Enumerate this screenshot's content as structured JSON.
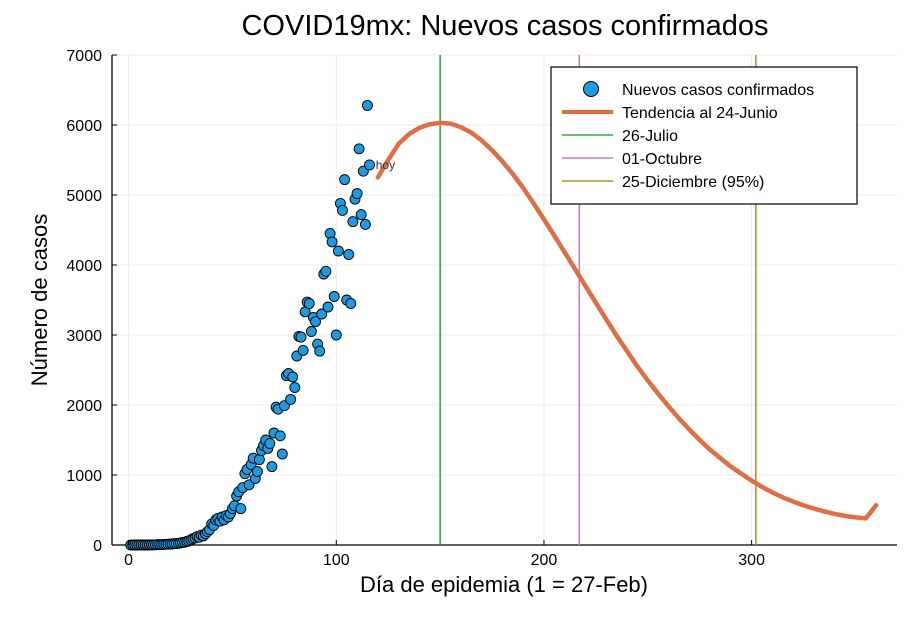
{
  "chart_data": {
    "type": "scatter",
    "title": "COVID19mx: Nuevos casos confirmados",
    "xlabel": "Día de epidemia (1 = 27-Feb)",
    "ylabel": "Número de casos",
    "xlim": [
      -8,
      370
    ],
    "ylim": [
      0,
      7000
    ],
    "xticks": [
      0,
      100,
      200,
      300
    ],
    "yticks": [
      0,
      1000,
      2000,
      3000,
      4000,
      5000,
      6000,
      7000
    ],
    "grid": true,
    "legend_position": "top-right",
    "annotation": {
      "text": "hoy",
      "x": 119,
      "y": 5430
    },
    "colors": {
      "scatter": "#1e9ae0",
      "trend": "#e06d43",
      "julio": "#3aa54a",
      "octubre": "#c47ccc",
      "diciembre": "#a89a1c"
    },
    "series": [
      {
        "name": "Nuevos casos confirmados",
        "type": "scatter",
        "points": [
          [
            1,
            0
          ],
          [
            2,
            0
          ],
          [
            3,
            0
          ],
          [
            4,
            0
          ],
          [
            5,
            1
          ],
          [
            6,
            1
          ],
          [
            7,
            0
          ],
          [
            8,
            2
          ],
          [
            9,
            0
          ],
          [
            10,
            1
          ],
          [
            11,
            2
          ],
          [
            12,
            1
          ],
          [
            13,
            3
          ],
          [
            14,
            5
          ],
          [
            15,
            4
          ],
          [
            16,
            5
          ],
          [
            17,
            8
          ],
          [
            18,
            10
          ],
          [
            19,
            12
          ],
          [
            20,
            13
          ],
          [
            21,
            15
          ],
          [
            22,
            18
          ],
          [
            23,
            20
          ],
          [
            24,
            25
          ],
          [
            25,
            30
          ],
          [
            26,
            35
          ],
          [
            27,
            40
          ],
          [
            28,
            50
          ],
          [
            29,
            60
          ],
          [
            30,
            75
          ],
          [
            31,
            90
          ],
          [
            32,
            100
          ],
          [
            33,
            120
          ],
          [
            34,
            110
          ],
          [
            35,
            140
          ],
          [
            36,
            130
          ],
          [
            37,
            160
          ],
          [
            38,
            190
          ],
          [
            39,
            220
          ],
          [
            40,
            300
          ],
          [
            41,
            280
          ],
          [
            42,
            360
          ],
          [
            43,
            380
          ],
          [
            44,
            340
          ],
          [
            45,
            400
          ],
          [
            46,
            360
          ],
          [
            47,
            420
          ],
          [
            48,
            400
          ],
          [
            49,
            450
          ],
          [
            50,
            520
          ],
          [
            51,
            560
          ],
          [
            52,
            700
          ],
          [
            53,
            760
          ],
          [
            54,
            520
          ],
          [
            55,
            820
          ],
          [
            56,
            1020
          ],
          [
            57,
            1080
          ],
          [
            58,
            860
          ],
          [
            59,
            1150
          ],
          [
            60,
            1240
          ],
          [
            61,
            950
          ],
          [
            62,
            1050
          ],
          [
            63,
            1220
          ],
          [
            64,
            1350
          ],
          [
            65,
            1420
          ],
          [
            66,
            1500
          ],
          [
            67,
            1380
          ],
          [
            68,
            1450
          ],
          [
            69,
            1120
          ],
          [
            70,
            1600
          ],
          [
            71,
            1970
          ],
          [
            72,
            1940
          ],
          [
            73,
            1560
          ],
          [
            74,
            1300
          ],
          [
            75,
            1990
          ],
          [
            76,
            2420
          ],
          [
            77,
            2450
          ],
          [
            78,
            2080
          ],
          [
            79,
            2400
          ],
          [
            80,
            2250
          ],
          [
            81,
            2700
          ],
          [
            82,
            2980
          ],
          [
            83,
            2970
          ],
          [
            84,
            2780
          ],
          [
            85,
            3330
          ],
          [
            86,
            3470
          ],
          [
            87,
            3450
          ],
          [
            88,
            3050
          ],
          [
            89,
            3250
          ],
          [
            90,
            3190
          ],
          [
            91,
            2870
          ],
          [
            92,
            2770
          ],
          [
            93,
            3300
          ],
          [
            94,
            3870
          ],
          [
            95,
            3910
          ],
          [
            96,
            3400
          ],
          [
            97,
            4450
          ],
          [
            98,
            4330
          ],
          [
            99,
            3550
          ],
          [
            100,
            3000
          ],
          [
            101,
            4200
          ],
          [
            102,
            4880
          ],
          [
            103,
            4780
          ],
          [
            104,
            5220
          ],
          [
            105,
            3500
          ],
          [
            106,
            4150
          ],
          [
            107,
            3450
          ],
          [
            108,
            4620
          ],
          [
            109,
            4940
          ],
          [
            110,
            5020
          ],
          [
            111,
            5660
          ],
          [
            112,
            4720
          ],
          [
            113,
            5340
          ],
          [
            114,
            4580
          ],
          [
            115,
            6280
          ],
          [
            116,
            5430
          ]
        ]
      },
      {
        "name": "Tendencia al 24-Junio",
        "type": "line",
        "peak_x": 152,
        "peak_y": 6030,
        "points": [
          [
            120,
            5250
          ],
          [
            125,
            5500
          ],
          [
            130,
            5730
          ],
          [
            135,
            5870
          ],
          [
            140,
            5960
          ],
          [
            145,
            6010
          ],
          [
            150,
            6030
          ],
          [
            155,
            6020
          ],
          [
            160,
            5970
          ],
          [
            165,
            5890
          ],
          [
            170,
            5780
          ],
          [
            175,
            5640
          ],
          [
            180,
            5480
          ],
          [
            185,
            5300
          ],
          [
            190,
            5100
          ],
          [
            195,
            4880
          ],
          [
            200,
            4650
          ],
          [
            205,
            4420
          ],
          [
            210,
            4180
          ],
          [
            215,
            3940
          ],
          [
            220,
            3700
          ],
          [
            225,
            3460
          ],
          [
            230,
            3220
          ],
          [
            235,
            2990
          ],
          [
            240,
            2770
          ],
          [
            245,
            2550
          ],
          [
            250,
            2350
          ],
          [
            255,
            2160
          ],
          [
            260,
            1980
          ],
          [
            265,
            1810
          ],
          [
            270,
            1650
          ],
          [
            275,
            1500
          ],
          [
            280,
            1360
          ],
          [
            285,
            1240
          ],
          [
            290,
            1120
          ],
          [
            295,
            1020
          ],
          [
            300,
            920
          ],
          [
            305,
            830
          ],
          [
            310,
            750
          ],
          [
            315,
            680
          ],
          [
            320,
            620
          ],
          [
            325,
            565
          ],
          [
            330,
            520
          ],
          [
            335,
            480
          ],
          [
            340,
            445
          ],
          [
            345,
            415
          ],
          [
            350,
            395
          ],
          [
            355,
            380
          ],
          [
            360,
            570
          ]
        ]
      },
      {
        "name": "26-Julio",
        "type": "vline",
        "x": 150
      },
      {
        "name": "01-Octubre",
        "type": "vline",
        "x": 217
      },
      {
        "name": "25-Diciembre (95%)",
        "type": "vline",
        "x": 302
      }
    ]
  }
}
